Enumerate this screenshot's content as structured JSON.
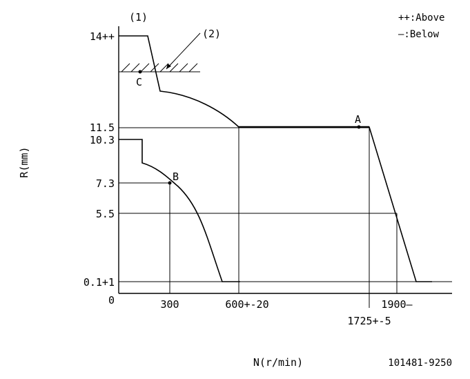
{
  "legend": {
    "above": "++:Above",
    "below": "—:Below"
  },
  "markers": {
    "one": "(1)",
    "two": "(2)"
  },
  "axes": {
    "x_label": "N(r/min)",
    "y_label": "R(mm)"
  },
  "y_ticks": {
    "t14": "14++",
    "t115": "11.5",
    "t103": "10.3",
    "t73": "7.3",
    "t55": "5.5",
    "t01": "0.1+1",
    "t0": "0"
  },
  "x_ticks": {
    "t300": "300",
    "t600": "600+-20",
    "t1900": "1900—",
    "t1725": "1725+-5"
  },
  "points": {
    "a": "A",
    "b": "B",
    "c": "C"
  },
  "drawing_number": "101481-9250"
}
